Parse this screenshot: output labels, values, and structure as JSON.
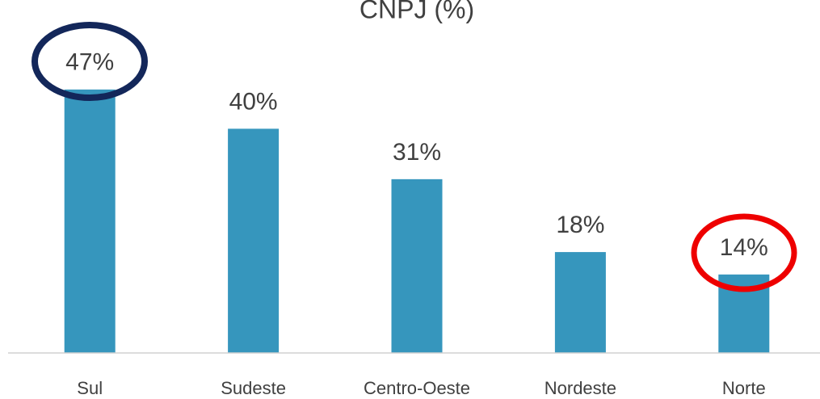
{
  "chart_data": {
    "type": "bar",
    "title": "CNPJ (%)",
    "categories": [
      "Sul",
      "Sudeste",
      "Centro-Oeste",
      "Nordeste",
      "Norte"
    ],
    "values": [
      47,
      40,
      31,
      18,
      14
    ],
    "value_labels": [
      "47%",
      "40%",
      "31%",
      "18%",
      "14%"
    ],
    "color": "#3696bd",
    "ylim": [
      0,
      50
    ]
  }
}
